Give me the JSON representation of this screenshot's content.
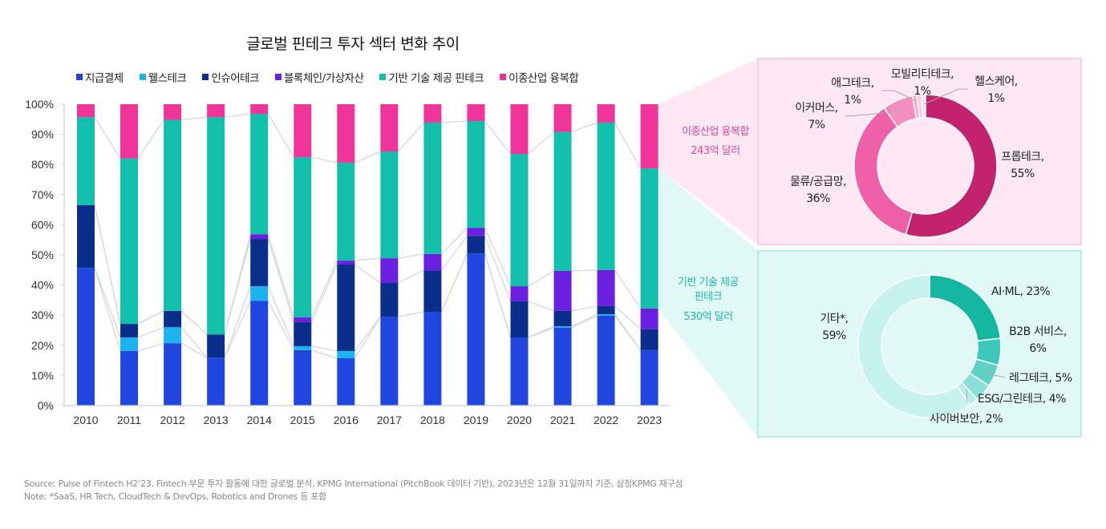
{
  "chart_data": [
    {
      "type": "bar",
      "stacked": true,
      "title": "글로벌 핀테크 투자 섹터 변화 추이",
      "xlabel": "",
      "ylabel": "",
      "ylim": [
        0,
        100
      ],
      "yticks": [
        "0%",
        "10%",
        "20%",
        "30%",
        "40%",
        "50%",
        "60%",
        "70%",
        "80%",
        "90%",
        "100%"
      ],
      "grid": false,
      "legend_position": "top",
      "categories": [
        "2010",
        "2011",
        "2012",
        "2013",
        "2014",
        "2015",
        "2016",
        "2017",
        "2018",
        "2019",
        "2020",
        "2021",
        "2022",
        "2023"
      ],
      "series": [
        {
          "name": "지급결제",
          "color": "#2046E0",
          "values": [
            45.7,
            18.1,
            20.7,
            15.9,
            34.8,
            18.4,
            15.7,
            29.5,
            31.1,
            50.5,
            22.6,
            25.8,
            29.8,
            18.4
          ]
        },
        {
          "name": "웰스테크",
          "color": "#1BB4F0",
          "values": [
            0,
            4.5,
            5.3,
            0,
            4.8,
            1.3,
            2.4,
            0,
            0,
            0,
            0,
            0.5,
            0.5,
            0
          ]
        },
        {
          "name": "인슈어테크",
          "color": "#0A2F8A",
          "values": [
            20.8,
            4.5,
            5.4,
            7.7,
            15.7,
            8.0,
            28.7,
            11.2,
            13.8,
            5.8,
            12.0,
            5.1,
            2.7,
            6.9
          ]
        },
        {
          "name": "블록체인/가상자산",
          "color": "#6B1FE0",
          "values": [
            0,
            0,
            0,
            0,
            1.5,
            1.6,
            1.3,
            8.2,
            5.4,
            2.7,
            5.0,
            13.3,
            12.0,
            6.9
          ]
        },
        {
          "name": "기반 기술 제공 핀테크",
          "color": "#12BFAA",
          "values": [
            29.2,
            54.9,
            63.4,
            72.1,
            40.0,
            53.1,
            32.5,
            35.4,
            43.6,
            35.4,
            43.9,
            46.1,
            48.9,
            46.5
          ]
        },
        {
          "name": "이종산업 융복합",
          "color": "#F0359A",
          "values": [
            4.3,
            18.0,
            5.2,
            4.3,
            3.2,
            17.6,
            19.4,
            15.7,
            6.1,
            5.6,
            16.5,
            9.2,
            6.1,
            21.3
          ]
        }
      ]
    },
    {
      "type": "pie",
      "donut": true,
      "title": "이종산업 융복합",
      "subtitle": "243억 달러",
      "labels": [
        "프롭테크",
        "물류/공급망",
        "이커머스",
        "애그테크",
        "모빌리티테크",
        "헬스케어"
      ],
      "values": [
        55,
        36,
        7,
        1,
        1,
        1
      ],
      "value_labels": [
        "55%",
        "36%",
        "7%",
        "1%",
        "1%",
        "1%"
      ],
      "colors": [
        "#C2226E",
        "#F060A8",
        "#F58EC0",
        "#F7A8D0",
        "#F9C5DF",
        "#FCE0EE"
      ]
    },
    {
      "type": "pie",
      "donut": true,
      "title": "기반 기술 제공 핀테크",
      "subtitle": "530억 달러",
      "labels": [
        "AI·ML",
        "B2B 서비스",
        "레그테크",
        "ESG/그린테크",
        "사이버보안",
        "기타*"
      ],
      "values": [
        23,
        6,
        5,
        4,
        2,
        59
      ],
      "value_labels": [
        "23%",
        "6%",
        "5%",
        "4%",
        "2%",
        "59%"
      ],
      "colors": [
        "#14B8A0",
        "#3CC8B8",
        "#5ED2C4",
        "#8ADFD6",
        "#B6EDE8",
        "#C6F3EF"
      ]
    }
  ],
  "callouts": {
    "convergence": {
      "line1": "이종산업 융복합",
      "line2": "243억 달러",
      "color": "#E0489E"
    },
    "infra": {
      "line1": "기반 기술 제공",
      "line2": "핀테크",
      "line3": "530억 달러",
      "color": "#1FB8A8"
    }
  },
  "donut_labels": {
    "pink": [
      {
        "name": "프롭테크,",
        "pct": "55%"
      },
      {
        "name": "물류/공급망,",
        "pct": "36%"
      },
      {
        "name": "이커머스,",
        "pct": "7%"
      },
      {
        "name": "애그테크,",
        "pct": "1%"
      },
      {
        "name": "모빌리티테크,",
        "pct": "1%"
      },
      {
        "name": "헬스케어,",
        "pct": "1%"
      }
    ],
    "teal": [
      {
        "name": "AI·ML, 23%"
      },
      {
        "name": "B2B 서비스,",
        "pct": "6%"
      },
      {
        "name": "레그테크, 5%"
      },
      {
        "name": "ESG/그린테크, 4%"
      },
      {
        "name": "사이버보안, 2%"
      },
      {
        "name": "기타*,",
        "pct": "59%"
      }
    ]
  },
  "footer": {
    "source": "Source: Pulse of Fintech H2’23, Fintech 부문 투자 활동에 대한 글로벌 분석, KPMG International (PitchBook 데이터 기반), 2023년은 12월 31일까지 기준, 삼정KPMG 재구성",
    "note": "Note: *SaaS, HR Tech, CloudTech & DevOps, Robotics and Drones 등 포함"
  }
}
